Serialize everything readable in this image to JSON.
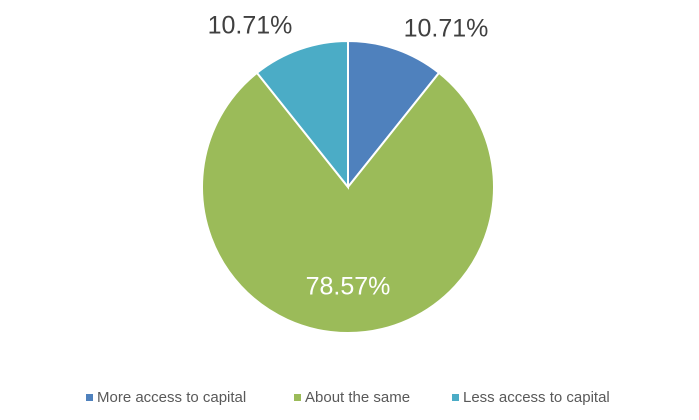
{
  "chart_data": {
    "type": "pie",
    "categories": [
      "More access to capital",
      "About the same",
      "Less access to capital"
    ],
    "values": [
      10.71,
      78.57,
      10.71
    ],
    "value_labels": [
      "10.71%",
      "78.57%",
      "10.71%"
    ],
    "colors": [
      "#4f81bd",
      "#9bbb59",
      "#4bacc6"
    ],
    "legend": "bottom"
  }
}
